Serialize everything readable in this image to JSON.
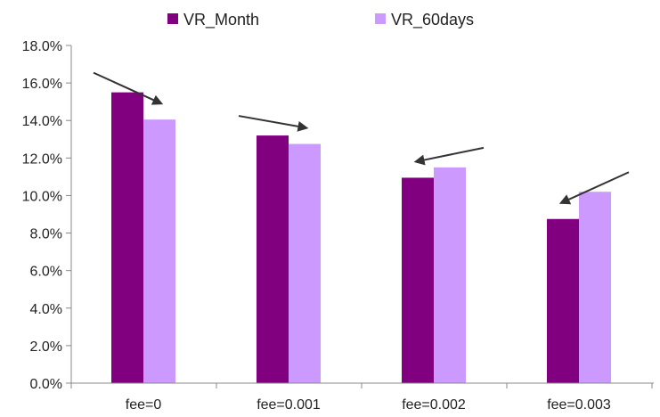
{
  "chart_data": {
    "type": "bar",
    "categories": [
      "fee=0",
      "fee=0.001",
      "fee=0.002",
      "fee=0.003"
    ],
    "series": [
      {
        "name": "VR_Month",
        "values": [
          15.5,
          13.2,
          10.95,
          8.75
        ],
        "color": "#800080"
      },
      {
        "name": "VR_60days",
        "values": [
          14.05,
          12.75,
          11.5,
          10.2
        ],
        "color": "#cc99ff"
      }
    ],
    "y_ticks": [
      "0.0%",
      "2.0%",
      "4.0%",
      "6.0%",
      "8.0%",
      "10.0%",
      "12.0%",
      "14.0%",
      "16.0%",
      "18.0%"
    ],
    "ylim": [
      0,
      18
    ],
    "ytick_step": 2,
    "legend_position": "top",
    "title": "",
    "xlabel": "",
    "ylabel": "",
    "grid": false,
    "annotations": [
      {
        "type": "arrow",
        "category": "fee=0",
        "direction": "from VR_Month toward VR_60days"
      },
      {
        "type": "arrow",
        "category": "fee=0.001",
        "direction": "from VR_Month toward VR_60days"
      },
      {
        "type": "arrow",
        "category": "fee=0.002",
        "direction": "from VR_60days toward VR_Month"
      },
      {
        "type": "arrow",
        "category": "fee=0.003",
        "direction": "from VR_60days toward VR_Month"
      }
    ]
  }
}
